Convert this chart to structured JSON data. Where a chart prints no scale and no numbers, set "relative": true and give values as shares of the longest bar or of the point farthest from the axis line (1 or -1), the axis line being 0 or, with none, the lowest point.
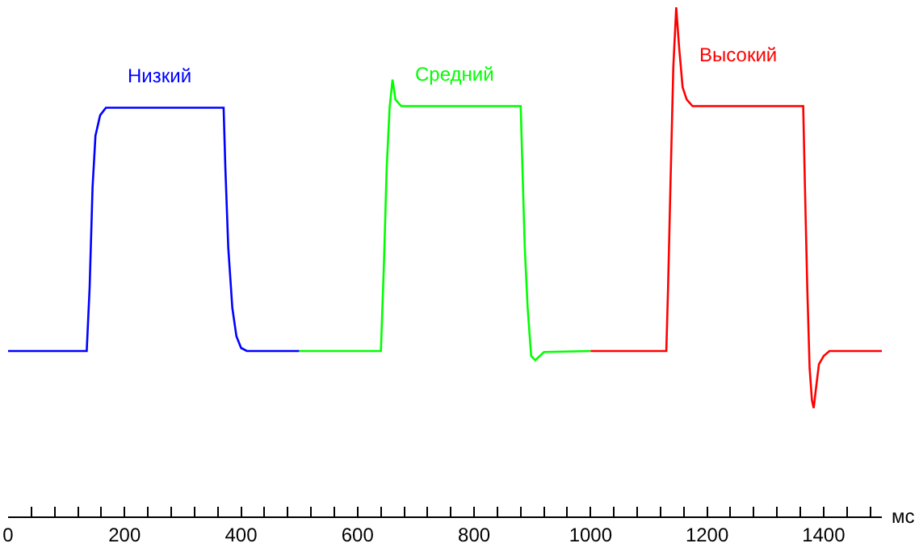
{
  "chart_data": {
    "type": "line",
    "relative": true,
    "xlabel": "мс",
    "xlim": [
      0,
      1500
    ],
    "xticks": [
      0,
      {
        "value": 40,
        "label": null
      },
      {
        "value": 80,
        "label": null
      },
      {
        "value": 120,
        "label": null
      },
      {
        "value": 160,
        "label": null
      },
      200,
      {
        "value": 240,
        "label": null
      },
      {
        "value": 280,
        "label": null
      },
      {
        "value": 320,
        "label": null
      },
      {
        "value": 360,
        "label": null
      },
      400,
      {
        "value": 440,
        "label": null
      },
      {
        "value": 480,
        "label": null
      },
      {
        "value": 520,
        "label": null
      },
      {
        "value": 560,
        "label": null
      },
      600,
      {
        "value": 640,
        "label": null
      },
      {
        "value": 680,
        "label": null
      },
      {
        "value": 720,
        "label": null
      },
      {
        "value": 760,
        "label": null
      },
      800,
      {
        "value": 840,
        "label": null
      },
      {
        "value": 880,
        "label": null
      },
      {
        "value": 920,
        "label": null
      },
      {
        "value": 960,
        "label": null
      },
      1000,
      {
        "value": 1040,
        "label": null
      },
      {
        "value": 1080,
        "label": null
      },
      {
        "value": 1120,
        "label": null
      },
      {
        "value": 1160,
        "label": null
      },
      1200,
      {
        "value": 1240,
        "label": null
      },
      {
        "value": 1280,
        "label": null
      },
      {
        "value": 1320,
        "label": null
      },
      {
        "value": 1360,
        "label": null
      },
      1400,
      {
        "value": 1440,
        "label": null
      },
      {
        "value": 1480,
        "label": null
      }
    ],
    "legend": false,
    "marker": "none",
    "line_style": "solid",
    "series": [
      {
        "name": "Низкий",
        "color": "#0000ff",
        "x": [
          0,
          135,
          140,
          145,
          150,
          158,
          168,
          370,
          373,
          378,
          385,
          392,
          400,
          410,
          500
        ],
        "values": [
          0.325,
          0.325,
          0.449,
          0.646,
          0.748,
          0.788,
          0.803,
          0.803,
          0.685,
          0.528,
          0.409,
          0.354,
          0.331,
          0.325,
          0.325
        ]
      },
      {
        "name": "Средний",
        "color": "#00ff00",
        "x": [
          500,
          640,
          645,
          650,
          655,
          660,
          665,
          675,
          880,
          883,
          887,
          892,
          898,
          905,
          920,
          1000
        ],
        "values": [
          0.325,
          0.325,
          0.488,
          0.685,
          0.803,
          0.858,
          0.819,
          0.806,
          0.806,
          0.685,
          0.528,
          0.409,
          0.315,
          0.307,
          0.323,
          0.325
        ]
      },
      {
        "name": "Высокий",
        "color": "#ff0000",
        "x": [
          1000,
          1130,
          1133,
          1137,
          1142,
          1147,
          1152,
          1158,
          1165,
          1175,
          1365,
          1368,
          1372,
          1376,
          1380,
          1383,
          1387,
          1392,
          1400,
          1410,
          1500
        ],
        "values": [
          0.325,
          0.325,
          0.449,
          0.646,
          0.882,
          1.0,
          0.921,
          0.843,
          0.819,
          0.806,
          0.806,
          0.646,
          0.449,
          0.291,
          0.228,
          0.213,
          0.252,
          0.299,
          0.315,
          0.325,
          0.325
        ]
      }
    ]
  }
}
